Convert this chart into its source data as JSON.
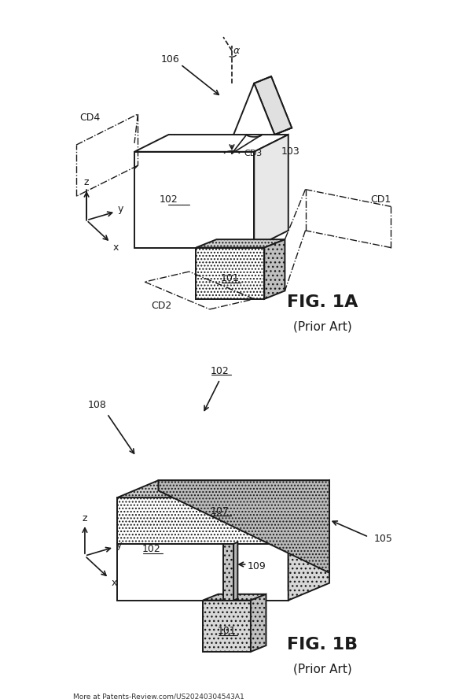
{
  "fig_width": 6.03,
  "fig_height": 8.88,
  "dpi": 100,
  "bg_color": "#ffffff",
  "line_color": "#1a1a1a",
  "hatch_color": "#555555",
  "fig1a_title": "FIG. 1A",
  "fig1b_title": "FIG. 1B",
  "prior_art": "(Prior Art)",
  "watermark": "More at Patents-Review.com/US20240304543A1"
}
